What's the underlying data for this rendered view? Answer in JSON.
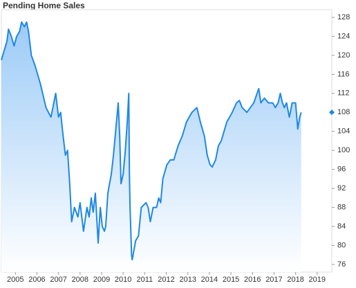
{
  "chart_data": {
    "type": "area-line",
    "title": "Pending Home Sales",
    "color": "#1e88e5",
    "x": [
      2004.35,
      2004.48,
      2004.61,
      2004.68,
      2004.81,
      2004.94,
      2005.06,
      2005.19,
      2005.29,
      2005.42,
      2005.52,
      2005.61,
      2005.74,
      2005.9,
      2006.16,
      2006.42,
      2006.65,
      2006.87,
      2007.0,
      2007.1,
      2007.19,
      2007.32,
      2007.42,
      2007.52,
      2007.61,
      2007.74,
      2007.9,
      2008.0,
      2008.16,
      2008.32,
      2008.42,
      2008.52,
      2008.61,
      2008.71,
      2008.84,
      2008.94,
      2009.03,
      2009.13,
      2009.19,
      2009.29,
      2009.45,
      2009.55,
      2009.65,
      2009.77,
      2009.84,
      2009.9,
      2010.0,
      2010.1,
      2010.19,
      2010.26,
      2010.29,
      2010.32,
      2010.39,
      2010.42,
      2010.58,
      2010.71,
      2010.84,
      2011.06,
      2011.16,
      2011.26,
      2011.39,
      2011.55,
      2011.65,
      2011.74,
      2011.84,
      2012.03,
      2012.19,
      2012.35,
      2012.55,
      2012.74,
      2012.94,
      2013.19,
      2013.42,
      2013.58,
      2013.77,
      2013.9,
      2014.03,
      2014.13,
      2014.29,
      2014.42,
      2014.55,
      2014.68,
      2014.81,
      2014.94,
      2015.06,
      2015.26,
      2015.39,
      2015.52,
      2015.74,
      2015.9,
      2016.06,
      2016.29,
      2016.39,
      2016.55,
      2016.74,
      2016.94,
      2017.06,
      2017.19,
      2017.29,
      2017.39,
      2017.48,
      2017.58,
      2017.71,
      2017.84,
      2018.0,
      2018.1,
      2018.19,
      2018.26
    ],
    "values": [
      119,
      121,
      123,
      125.5,
      124,
      122,
      124,
      125,
      127,
      126,
      127,
      125,
      120,
      118,
      114,
      109,
      107,
      112,
      107,
      108,
      104,
      99,
      100,
      93,
      85,
      88,
      86,
      89,
      83,
      88,
      86,
      90,
      87,
      91,
      80.5,
      88,
      84,
      83,
      84,
      91,
      95,
      99,
      104,
      110,
      103,
      93,
      95,
      100,
      106,
      112,
      95,
      88,
      78,
      77,
      81,
      82,
      88,
      89,
      88,
      85,
      88,
      88,
      90,
      89,
      94,
      97,
      98,
      98,
      101,
      103,
      106,
      108,
      109,
      106,
      103,
      99,
      97,
      96.5,
      98,
      101,
      102,
      104,
      106,
      107,
      108,
      110,
      110.5,
      109,
      108,
      109,
      110,
      113,
      110,
      111,
      110,
      110,
      109,
      110,
      112,
      110,
      109,
      110,
      107,
      110,
      110,
      104.5,
      107,
      108
    ],
    "xlim": [
      2004.35,
      2019.68
    ],
    "xticks": [
      2005,
      2006,
      2007,
      2008,
      2009,
      2010,
      2011,
      2012,
      2013,
      2014,
      2015,
      2016,
      2017,
      2018,
      2019
    ],
    "ylim": [
      74.4,
      129.6
    ],
    "yticks": [
      76,
      80,
      84,
      88,
      92,
      96,
      100,
      104,
      108,
      112,
      116,
      120,
      124,
      128
    ]
  }
}
